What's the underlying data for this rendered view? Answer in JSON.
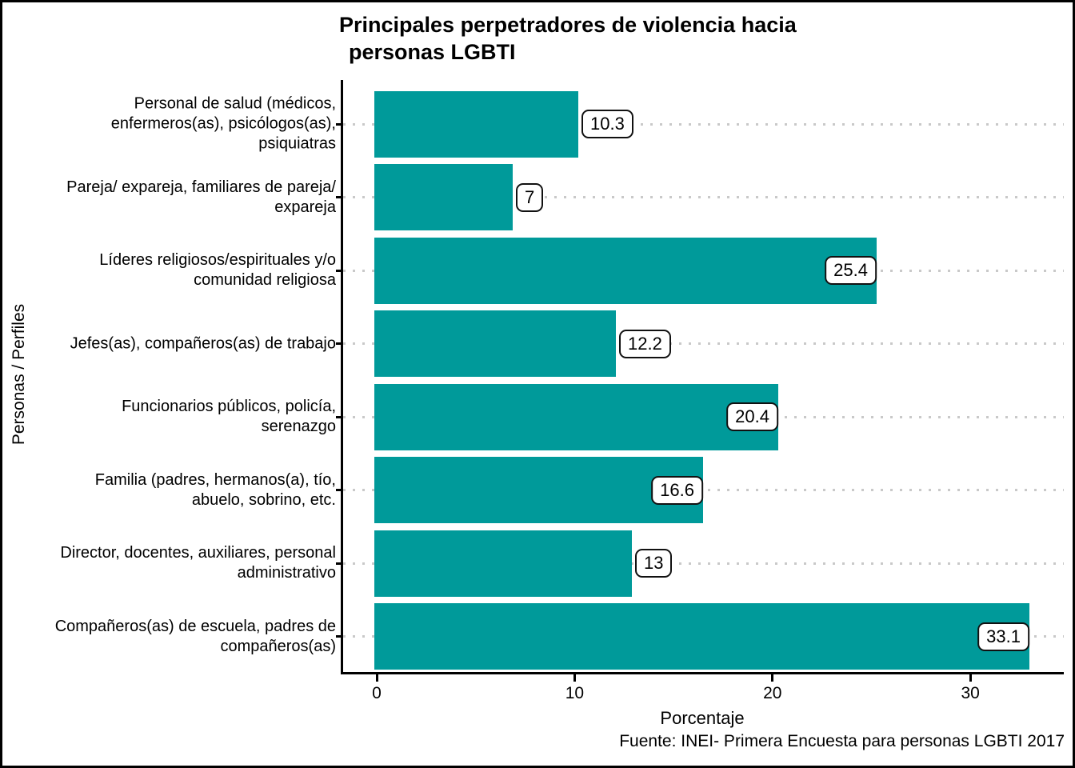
{
  "figure": {
    "title_line1": "Principales perpetradores de violencia hacia",
    "title_line2": "personas LGBTI",
    "y_axis_title": "Personas / Perfiles",
    "x_axis_title": "Porcentaje",
    "caption": "Fuente: INEI- Primera Encuesta para personas LGBTI 2017"
  },
  "chart_data": {
    "type": "bar",
    "orientation": "horizontal",
    "title": "Principales perpetradores de violencia hacia personas LGBTI",
    "xlabel": "Porcentaje",
    "ylabel": "Personas / Perfiles",
    "caption": "Fuente: INEI- Primera Encuesta para personas LGBTI 2017",
    "bar_color": "#009A9A",
    "gridline_color": "#c9c9c9",
    "grid": "horizontal-dotted",
    "legend": "none",
    "xlim": [
      0,
      35
    ],
    "x_ticks": [
      "0",
      "10",
      "20",
      "30"
    ],
    "x_tick_values": [
      0,
      10,
      20,
      30
    ],
    "categories": [
      "Personal de salud (médicos, enfermeros(as), psicólogos(as), psiquiatras",
      "Pareja/ expareja, familiares de pareja/ expareja",
      "Líderes religiosos/espirituales y/o comunidad religiosa",
      "Jefes(as), compañeros(as) de trabajo",
      "Funcionarios públicos, policía, serenazgo",
      "Familia (padres, hermanos(a), tío, abuelo, sobrino, etc.",
      "Director, docentes, auxiliares, personal administrativo",
      "Compañeros(as) de escuela, padres de compañeros(as)"
    ],
    "category_display_lines": [
      [
        "Personal de salud (médicos,",
        "enfermeros(as), psicólogos(as),",
        "psiquiatras"
      ],
      [
        "Pareja/ expareja, familiares de pareja/",
        "expareja"
      ],
      [
        "Líderes religiosos/espirituales y/o",
        "comunidad religiosa"
      ],
      [
        "Jefes(as), compañeros(as) de trabajo"
      ],
      [
        "Funcionarios públicos, policía,",
        "serenazgo"
      ],
      [
        "Familia (padres, hermanos(a), tío,",
        "abuelo, sobrino, etc."
      ],
      [
        "Director, docentes, auxiliares, personal",
        "administrativo"
      ],
      [
        "Compañeros(as) de escuela, padres de",
        "compañeros(as)"
      ]
    ],
    "values": [
      10.3,
      7,
      25.4,
      12.2,
      20.4,
      16.6,
      13,
      33.1
    ],
    "value_labels": [
      "10.3",
      "7",
      "25.4",
      "12.2",
      "20.4",
      "16.6",
      "13",
      "33.1"
    ],
    "label_inside": [
      false,
      false,
      true,
      false,
      true,
      true,
      false,
      true
    ]
  }
}
